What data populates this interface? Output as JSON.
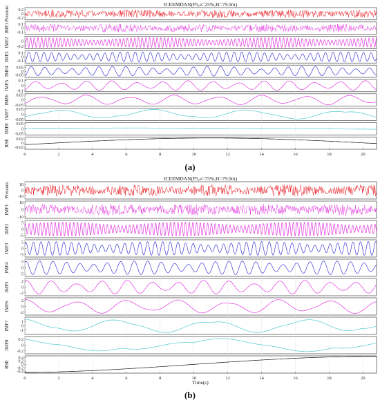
{
  "figure": {
    "caption_a": "(a)",
    "caption_b": "(b)",
    "colors": {
      "red": "#e8141c",
      "magenta": "#e233e0",
      "blue": "#3a3ad8",
      "cyan": "#4cc8cf",
      "black": "#111111",
      "axis": "#222222",
      "grid": "#e6e6e6"
    }
  },
  "chart_data": [
    {
      "id": "a",
      "type": "line",
      "title": "ICEEMDAN(P5,e=25%,H=79.0m)",
      "xlabel": "",
      "xlim": [
        0,
        20.8
      ],
      "x_ticks": [
        0,
        2,
        4,
        6,
        8,
        10,
        12,
        14,
        16,
        18,
        20
      ],
      "grid": true,
      "series": [
        {
          "name": "Pressure",
          "color": "red",
          "signal": "noise",
          "ylim": [
            -0.3,
            0.3
          ],
          "yticks": [
            {
              "v": 0.2,
              "t": "0.2"
            },
            {
              "v": 0,
              "t": "0"
            },
            {
              "v": -0.2,
              "t": "-0.2"
            }
          ]
        },
        {
          "name": "IMF1",
          "color": "magenta",
          "signal": "noise",
          "ylim": [
            -0.15,
            0.15
          ],
          "yticks": [
            {
              "v": 0.1,
              "t": "0.1"
            },
            {
              "v": 0,
              "t": "0"
            },
            {
              "v": -0.1,
              "t": "-0.1"
            }
          ]
        },
        {
          "name": "IMF2",
          "color": "magenta",
          "signal": "osc",
          "period": 0.22,
          "ylim": [
            -0.3,
            0.2
          ],
          "yticks": [
            {
              "v": 0,
              "t": "0"
            },
            {
              "v": -0.2,
              "t": "-0.2"
            }
          ]
        },
        {
          "name": "IMF3",
          "color": "blue",
          "signal": "osc",
          "period": 0.45,
          "ylim": [
            -0.15,
            0.15
          ],
          "yticks": [
            {
              "v": 0.1,
              "t": "0.1"
            },
            {
              "v": 0,
              "t": "0"
            },
            {
              "v": -0.1,
              "t": "-0.1"
            }
          ]
        },
        {
          "name": "IMF4",
          "color": "blue",
          "signal": "osc",
          "period": 0.8,
          "ylim": [
            -0.08,
            0.08
          ],
          "yticks": [
            {
              "v": 0.05,
              "t": "0.05"
            },
            {
              "v": 0,
              "t": "0"
            },
            {
              "v": -0.05,
              "t": "-0.05"
            }
          ]
        },
        {
          "name": "IMF5",
          "color": "magenta",
          "signal": "osc",
          "period": 1.5,
          "ylim": [
            -0.12,
            0.12
          ],
          "yticks": [
            {
              "v": 0.1,
              "t": "0.1"
            },
            {
              "v": 0,
              "t": "0"
            },
            {
              "v": -0.1,
              "t": "-0.1"
            }
          ]
        },
        {
          "name": "IMF6",
          "color": "magenta",
          "signal": "osc",
          "period": 2.6,
          "ylim": [
            -0.06,
            0.06
          ],
          "yticks": [
            {
              "v": 0.05,
              "t": "0.05"
            },
            {
              "v": 0,
              "t": "0"
            },
            {
              "v": -0.05,
              "t": "-0.05"
            }
          ]
        },
        {
          "name": "IMF7",
          "color": "cyan",
          "signal": "osc",
          "period": 5.6,
          "ylim": [
            -0.06,
            0.06
          ],
          "yticks": [
            {
              "v": 0.05,
              "t": "0.05"
            },
            {
              "v": 0,
              "t": "0"
            },
            {
              "v": -0.05,
              "t": "-0.05"
            }
          ]
        },
        {
          "name": "IMF8",
          "color": "cyan",
          "signal": "slow",
          "ylim": [
            -0.06,
            0.06
          ],
          "yticks": [
            {
              "v": 0.05,
              "t": "0.05"
            },
            {
              "v": 0,
              "t": "0"
            },
            {
              "v": -0.05,
              "t": "-0.05"
            }
          ]
        },
        {
          "name": "RSE",
          "color": "black",
          "signal": "trend",
          "ylim": [
            -0.03,
            0.03
          ],
          "yticks": [
            {
              "v": 0.02,
              "t": "0.02"
            },
            {
              "v": 0,
              "t": "0"
            },
            {
              "v": -0.02,
              "t": "-0.02"
            }
          ]
        }
      ]
    },
    {
      "id": "b",
      "type": "line",
      "title": "ICEEMDAN(P5,e=75%,H=79.0m)",
      "xlabel": "Time(s)",
      "xlim": [
        0,
        20.8
      ],
      "x_ticks": [
        0,
        2,
        4,
        6,
        8,
        10,
        12,
        14,
        16,
        18,
        20
      ],
      "grid": true,
      "series": [
        {
          "name": "Pressure",
          "color": "red",
          "signal": "noise",
          "ylim": [
            -15,
            15
          ],
          "yticks": [
            {
              "v": 10,
              "t": "10"
            },
            {
              "v": 0,
              "t": "0"
            },
            {
              "v": -10,
              "t": "-10"
            }
          ]
        },
        {
          "name": "IMF1",
          "color": "magenta",
          "signal": "noise",
          "ylim": [
            -12,
            12
          ],
          "yticks": [
            {
              "v": 10,
              "t": "10"
            },
            {
              "v": 0,
              "t": "0"
            },
            {
              "v": -10,
              "t": "-10"
            }
          ]
        },
        {
          "name": "IMF2",
          "color": "magenta",
          "signal": "osc",
          "period": 0.22,
          "ylim": [
            -7,
            7
          ],
          "yticks": [
            {
              "v": 5,
              "t": "5"
            },
            {
              "v": 0,
              "t": "0"
            },
            {
              "v": -5,
              "t": "-5"
            }
          ]
        },
        {
          "name": "IMF3",
          "color": "blue",
          "signal": "osc",
          "period": 0.45,
          "ylim": [
            -7,
            7
          ],
          "yticks": [
            {
              "v": 5,
              "t": "5"
            },
            {
              "v": 0,
              "t": "0"
            },
            {
              "v": -5,
              "t": "-5"
            }
          ]
        },
        {
          "name": "IMF4",
          "color": "blue",
          "signal": "osc",
          "period": 0.8,
          "ylim": [
            -7,
            7
          ],
          "yticks": [
            {
              "v": 5,
              "t": "5"
            },
            {
              "v": 0,
              "t": "0"
            },
            {
              "v": -5,
              "t": "-5"
            }
          ]
        },
        {
          "name": "IMF5",
          "color": "magenta",
          "signal": "osc",
          "period": 1.5,
          "ylim": [
            -3,
            3
          ],
          "yticks": [
            {
              "v": 2,
              "t": "2"
            },
            {
              "v": 0,
              "t": "0"
            },
            {
              "v": -2,
              "t": "-2"
            }
          ]
        },
        {
          "name": "IMF6",
          "color": "magenta",
          "signal": "osc",
          "period": 3.0,
          "ylim": [
            -3,
            3
          ],
          "yticks": [
            {
              "v": 2,
              "t": "2"
            },
            {
              "v": 0,
              "t": "0"
            },
            {
              "v": -2,
              "t": "-2"
            }
          ]
        },
        {
          "name": "IMF7",
          "color": "cyan",
          "signal": "osc",
          "period": 5.6,
          "ylim": [
            -2,
            2
          ],
          "yticks": [
            {
              "v": 1,
              "t": "1"
            },
            {
              "v": 0,
              "t": "0"
            },
            {
              "v": -1,
              "t": "-1"
            }
          ]
        },
        {
          "name": "IMF8",
          "color": "cyan",
          "signal": "osc",
          "period": 12,
          "ylim": [
            -0.3,
            0.3
          ],
          "yticks": [
            {
              "v": 0.2,
              "t": "0.2"
            },
            {
              "v": 0,
              "t": "0"
            },
            {
              "v": -0.2,
              "t": "-0.2"
            }
          ]
        },
        {
          "name": "RSE",
          "color": "black",
          "signal": "trendup",
          "ylim": [
            -0.5,
            0.5
          ],
          "yticks": [
            {
              "v": 0.4,
              "t": "0.4"
            },
            {
              "v": 0.2,
              "t": "0.2"
            },
            {
              "v": 0,
              "t": "0"
            },
            {
              "v": -0.2,
              "t": "-0.2"
            },
            {
              "v": -0.4,
              "t": "-0.4"
            }
          ]
        }
      ]
    }
  ]
}
